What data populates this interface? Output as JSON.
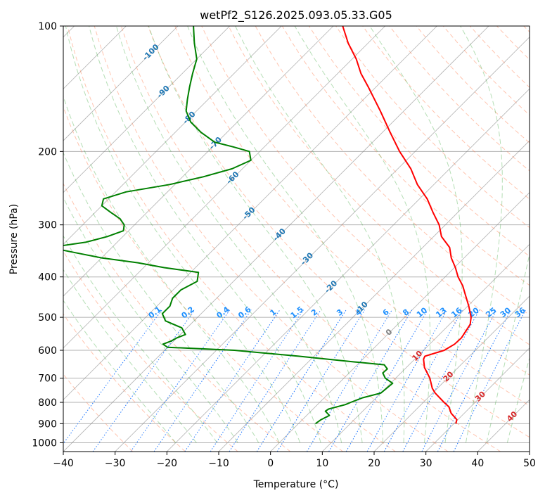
{
  "title": "wetPf2_S126.2025.093.05.33.G05",
  "chart_data": {
    "type": "line",
    "diagram": "skew-T log-P",
    "title": "wetPf2_S126.2025.093.05.33.G05",
    "xlabel": "Temperature (°C)",
    "ylabel": "Pressure (hPa)",
    "xlim": [
      -40,
      50
    ],
    "ylim": [
      1050,
      100
    ],
    "y_scale": "log",
    "x_ticks": [
      "−40",
      "−30",
      "−20",
      "−10",
      "0",
      "10",
      "20",
      "30",
      "40",
      "50"
    ],
    "y_ticks": [
      1000,
      900,
      800,
      700,
      600,
      500,
      400,
      300,
      200,
      100
    ],
    "grid": "horizontal at pressure ticks",
    "colors": {
      "temperature": "#ff0000",
      "dewpoint": "#008000",
      "isotherm": "#808080",
      "dry_adiabat": "#ff7f50",
      "moist_adiabat": "#2ca02c",
      "mixing_ratio": "#1f77ff",
      "isotherm_label": "#1f77b4",
      "mixing_ratio_label": "#1e90ff",
      "zero_label": "#808080",
      "warm_label": "#d62728"
    },
    "series": [
      {
        "name": "Temperature",
        "pressure": [
          900,
          880,
          850,
          820,
          800,
          760,
          740,
          700,
          660,
          630,
          620,
          600,
          580,
          560,
          520,
          500,
          470,
          440,
          420,
          400,
          380,
          360,
          340,
          320,
          300,
          280,
          260,
          240,
          220,
          200,
          180,
          160,
          140,
          130,
          120,
          110,
          100
        ],
        "temp": [
          30.4,
          29.8,
          27.5,
          25.8,
          24.0,
          20.5,
          19.0,
          16.6,
          13.5,
          11.7,
          11.4,
          14.0,
          14.8,
          14.9,
          14.0,
          12.8,
          10.2,
          7.2,
          5.1,
          2.5,
          0.2,
          -2.5,
          -4.8,
          -8.5,
          -11.2,
          -14.8,
          -18.5,
          -23.2,
          -27.5,
          -33.0,
          -38.5,
          -44.5,
          -51.5,
          -55.5,
          -59.2,
          -63.8,
          -68.2
        ]
      },
      {
        "name": "Dewpoint",
        "pressure": [
          900,
          880,
          860,
          840,
          830,
          810,
          800,
          780,
          760,
          740,
          720,
          700,
          680,
          665,
          650,
          640,
          620,
          600,
          590,
          580,
          570,
          560,
          550,
          530,
          510,
          490,
          470,
          450,
          430,
          410,
          390,
          380,
          370,
          360,
          350,
          340,
          330,
          320,
          310,
          300,
          290,
          280,
          270,
          260,
          250,
          240,
          230,
          220,
          210,
          200,
          195,
          190,
          180,
          170,
          160,
          150,
          140,
          130,
          120,
          110,
          100
        ],
        "dewpoint": [
          3.3,
          3.6,
          4.4,
          2.8,
          3.0,
          5.4,
          6.0,
          7.4,
          10.0,
          10.2,
          10.4,
          8.0,
          6.5,
          6.6,
          5.2,
          -1.0,
          -13.0,
          -26.5,
          -40.0,
          -41.5,
          -40.5,
          -40.0,
          -39.0,
          -41.0,
          -45.5,
          -47.5,
          -47.5,
          -48.5,
          -48.5,
          -47.0,
          -48.5,
          -56.0,
          -62.0,
          -70.0,
          -76.0,
          -82.0,
          -76.0,
          -73.0,
          -71.0,
          -72.0,
          -74.0,
          -77.0,
          -80.0,
          -81.0,
          -78.0,
          -71.0,
          -66.0,
          -62.0,
          -60.0,
          -62.0,
          -66.0,
          -70.5,
          -75.0,
          -79.0,
          -82.0,
          -84.0,
          -86.0,
          -88.0,
          -90.0,
          -93.5,
          -97.0
        ]
      }
    ],
    "isotherm_labels": [
      "-100",
      "-90",
      "-80",
      "-70",
      "-60",
      "-50",
      "-40",
      "-30",
      "-20",
      "-10",
      "0",
      "10",
      "20",
      "30",
      "40"
    ],
    "mixing_ratio_labels": [
      "0.1",
      "0.2",
      "0.4",
      "0.6",
      "1",
      "1.5",
      "2",
      "3",
      "4",
      "6",
      "8",
      "10",
      "13",
      "16",
      "20",
      "25",
      "30",
      "36"
    ]
  }
}
